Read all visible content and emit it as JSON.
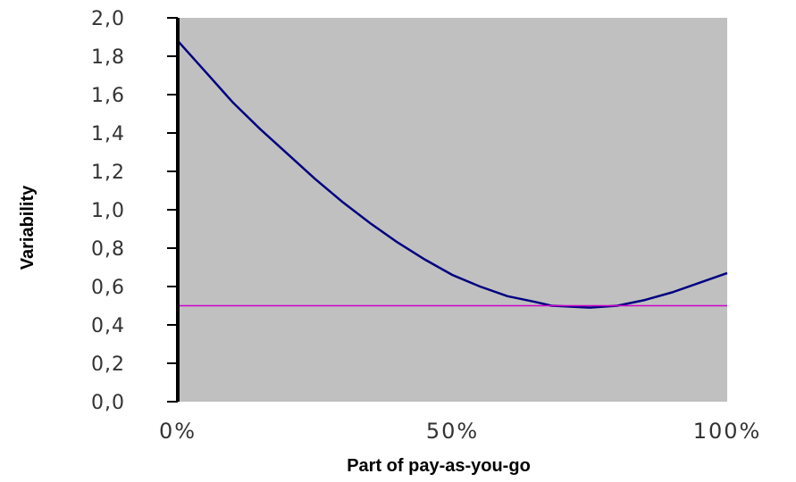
{
  "chart_data": {
    "type": "line",
    "xlabel": "Part of pay-as-you-go",
    "ylabel": "Variability",
    "xlim": [
      0,
      100
    ],
    "ylim": [
      0,
      2.0
    ],
    "x_ticks": [
      {
        "value": 0,
        "label": "0%"
      },
      {
        "value": 50,
        "label": "50%"
      },
      {
        "value": 100,
        "label": "100%"
      }
    ],
    "y_ticks": [
      {
        "value": 0.0,
        "label": "0,0"
      },
      {
        "value": 0.2,
        "label": "0,2"
      },
      {
        "value": 0.4,
        "label": "0,4"
      },
      {
        "value": 0.6,
        "label": "0,6"
      },
      {
        "value": 0.8,
        "label": "0,8"
      },
      {
        "value": 1.0,
        "label": "1,0"
      },
      {
        "value": 1.2,
        "label": "1,2"
      },
      {
        "value": 1.4,
        "label": "1,4"
      },
      {
        "value": 1.6,
        "label": "1,6"
      },
      {
        "value": 1.8,
        "label": "1,8"
      },
      {
        "value": 2.0,
        "label": "2,0"
      }
    ],
    "plot_background": "#c0c0c0",
    "grid": false,
    "legend": "none",
    "series": [
      {
        "color": "#000080",
        "x": [
          0,
          5,
          10,
          15,
          20,
          25,
          30,
          35,
          40,
          45,
          50,
          55,
          60,
          65,
          68,
          75,
          80,
          85,
          90,
          95,
          100
        ],
        "values": [
          1.88,
          1.72,
          1.56,
          1.42,
          1.29,
          1.16,
          1.04,
          0.93,
          0.83,
          0.74,
          0.66,
          0.6,
          0.55,
          0.52,
          0.5,
          0.49,
          0.5,
          0.53,
          0.57,
          0.62,
          0.67
        ]
      },
      {
        "color": "#cc00cc",
        "x": [
          0,
          100
        ],
        "values": [
          0.5,
          0.5
        ]
      }
    ]
  }
}
